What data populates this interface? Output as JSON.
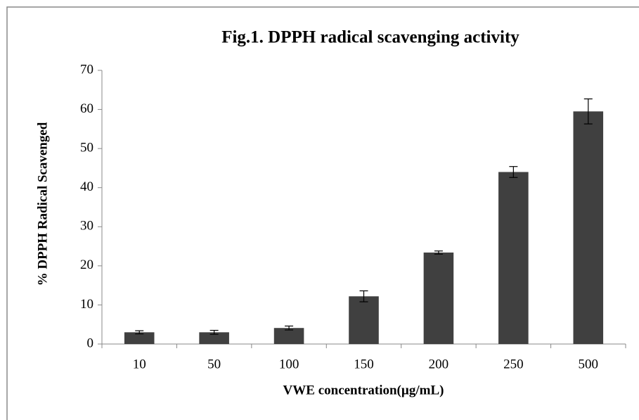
{
  "chart_data": {
    "type": "bar",
    "title": "Fig.1. DPPH radical scavenging activity",
    "x_label": "VWE concentration(µg/mL)",
    "y_label": "% DPPH Radical Scavenged",
    "categories": [
      "10",
      "50",
      "100",
      "150",
      "200",
      "250",
      "500"
    ],
    "values": [
      3.0,
      3.0,
      4.1,
      12.2,
      23.4,
      44.0,
      59.5
    ],
    "errors": [
      0.4,
      0.5,
      0.5,
      1.4,
      0.4,
      1.4,
      3.2
    ],
    "color": "#404040",
    "ylim": [
      0,
      70
    ],
    "yticks": [
      0,
      10,
      20,
      30,
      40,
      50,
      60,
      70
    ],
    "grid": false
  }
}
